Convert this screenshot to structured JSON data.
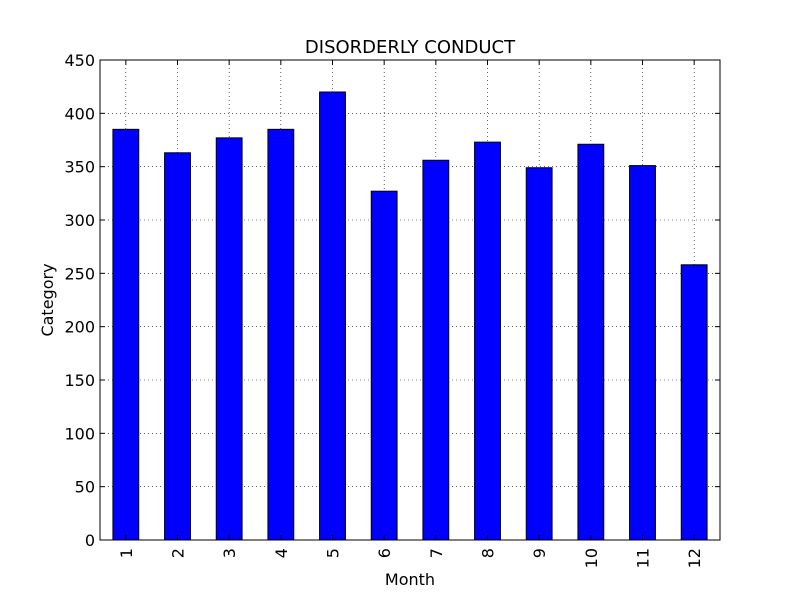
{
  "chart_data": {
    "type": "bar",
    "title": "DISORDERLY CONDUCT",
    "xlabel": "Month",
    "ylabel": "Category",
    "categories": [
      "1",
      "2",
      "3",
      "4",
      "5",
      "6",
      "7",
      "8",
      "9",
      "10",
      "11",
      "12"
    ],
    "values": [
      385,
      363,
      377,
      385,
      420,
      327,
      356,
      373,
      349,
      371,
      351,
      258
    ],
    "ylim": [
      0,
      450
    ],
    "yticks": [
      "0",
      "50",
      "100",
      "150",
      "200",
      "250",
      "300",
      "350",
      "400",
      "450"
    ],
    "grid": true,
    "bar_color": "#0000ff",
    "edge_color": "#000000"
  }
}
